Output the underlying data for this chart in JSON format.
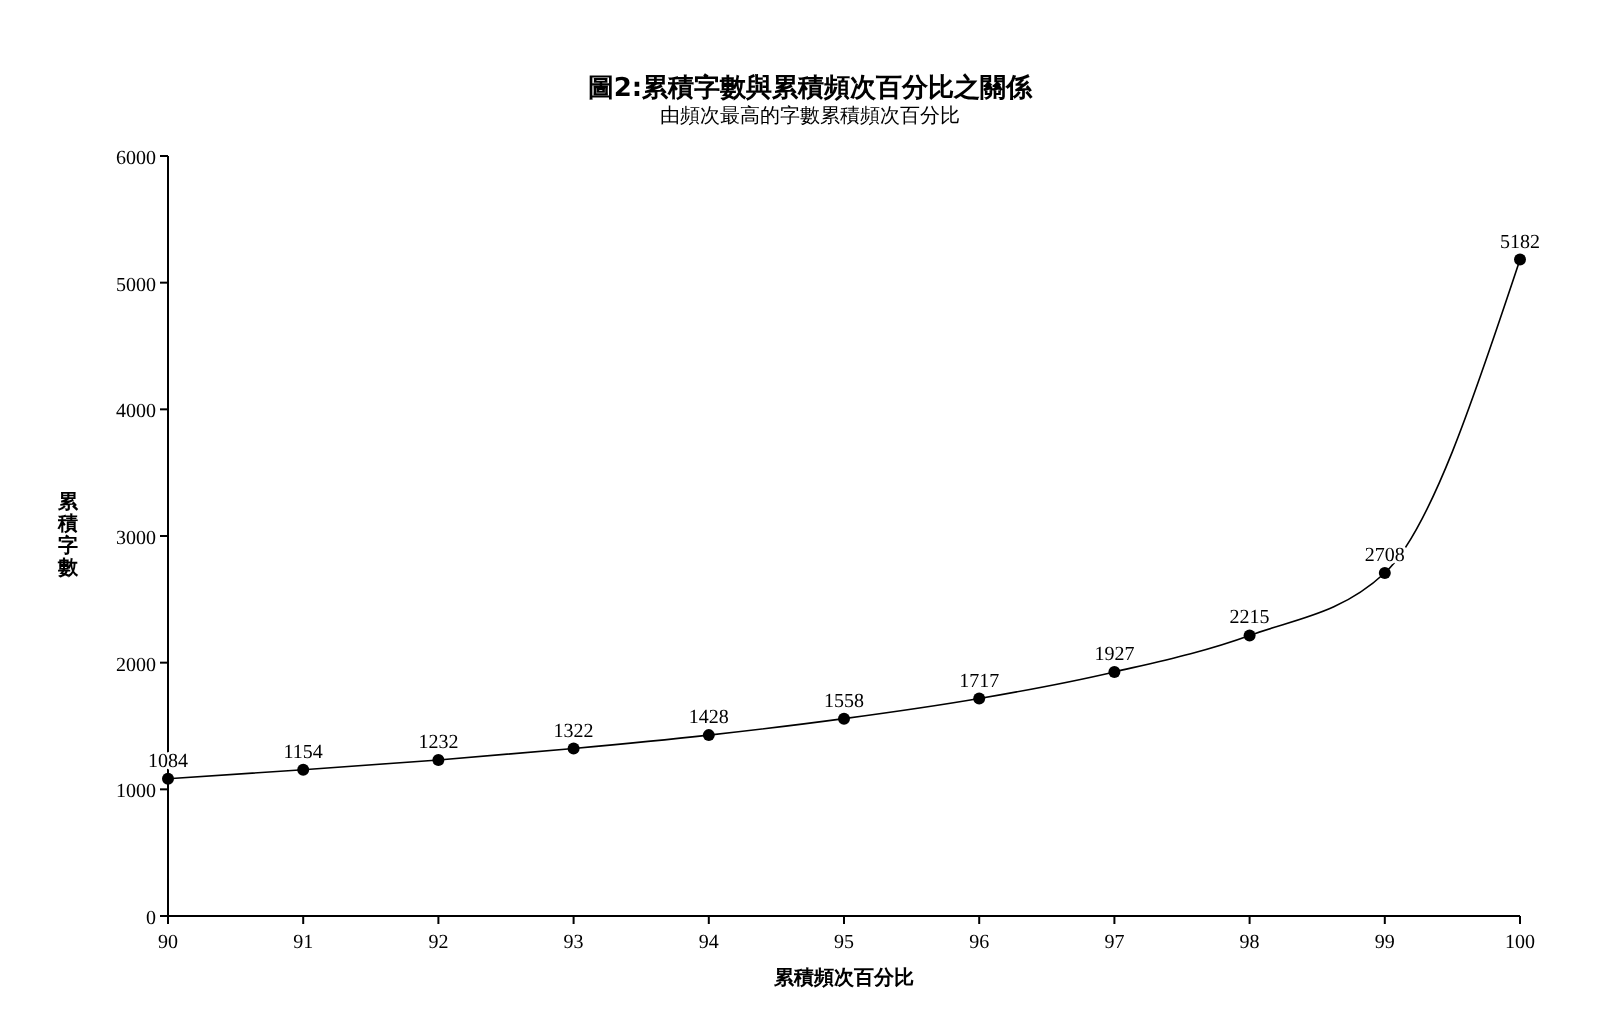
{
  "chart_data": {
    "type": "line",
    "title": "圖2:累積字數與累積頻次百分比之關係",
    "subtitle": "由頻次最高的字數累積頻次百分比",
    "xlabel": "累積頻次百分比",
    "ylabel": "累積字數",
    "x": [
      90,
      91,
      92,
      93,
      94,
      95,
      96,
      97,
      98,
      99,
      100
    ],
    "series": [
      {
        "color": "#000000",
        "values": [
          1084,
          1154,
          1232,
          1322,
          1428,
          1558,
          1717,
          1927,
          2215,
          2708,
          5182
        ]
      }
    ],
    "xlim": [
      90,
      100
    ],
    "xticks": [
      90,
      91,
      92,
      93,
      94,
      95,
      96,
      97,
      98,
      99,
      100
    ],
    "ylim": [
      0,
      6000
    ],
    "yticks": [
      0,
      1000,
      2000,
      3000,
      4000,
      5000,
      6000
    ],
    "data_labels": true,
    "marker": "circle",
    "line_style": "solid"
  }
}
